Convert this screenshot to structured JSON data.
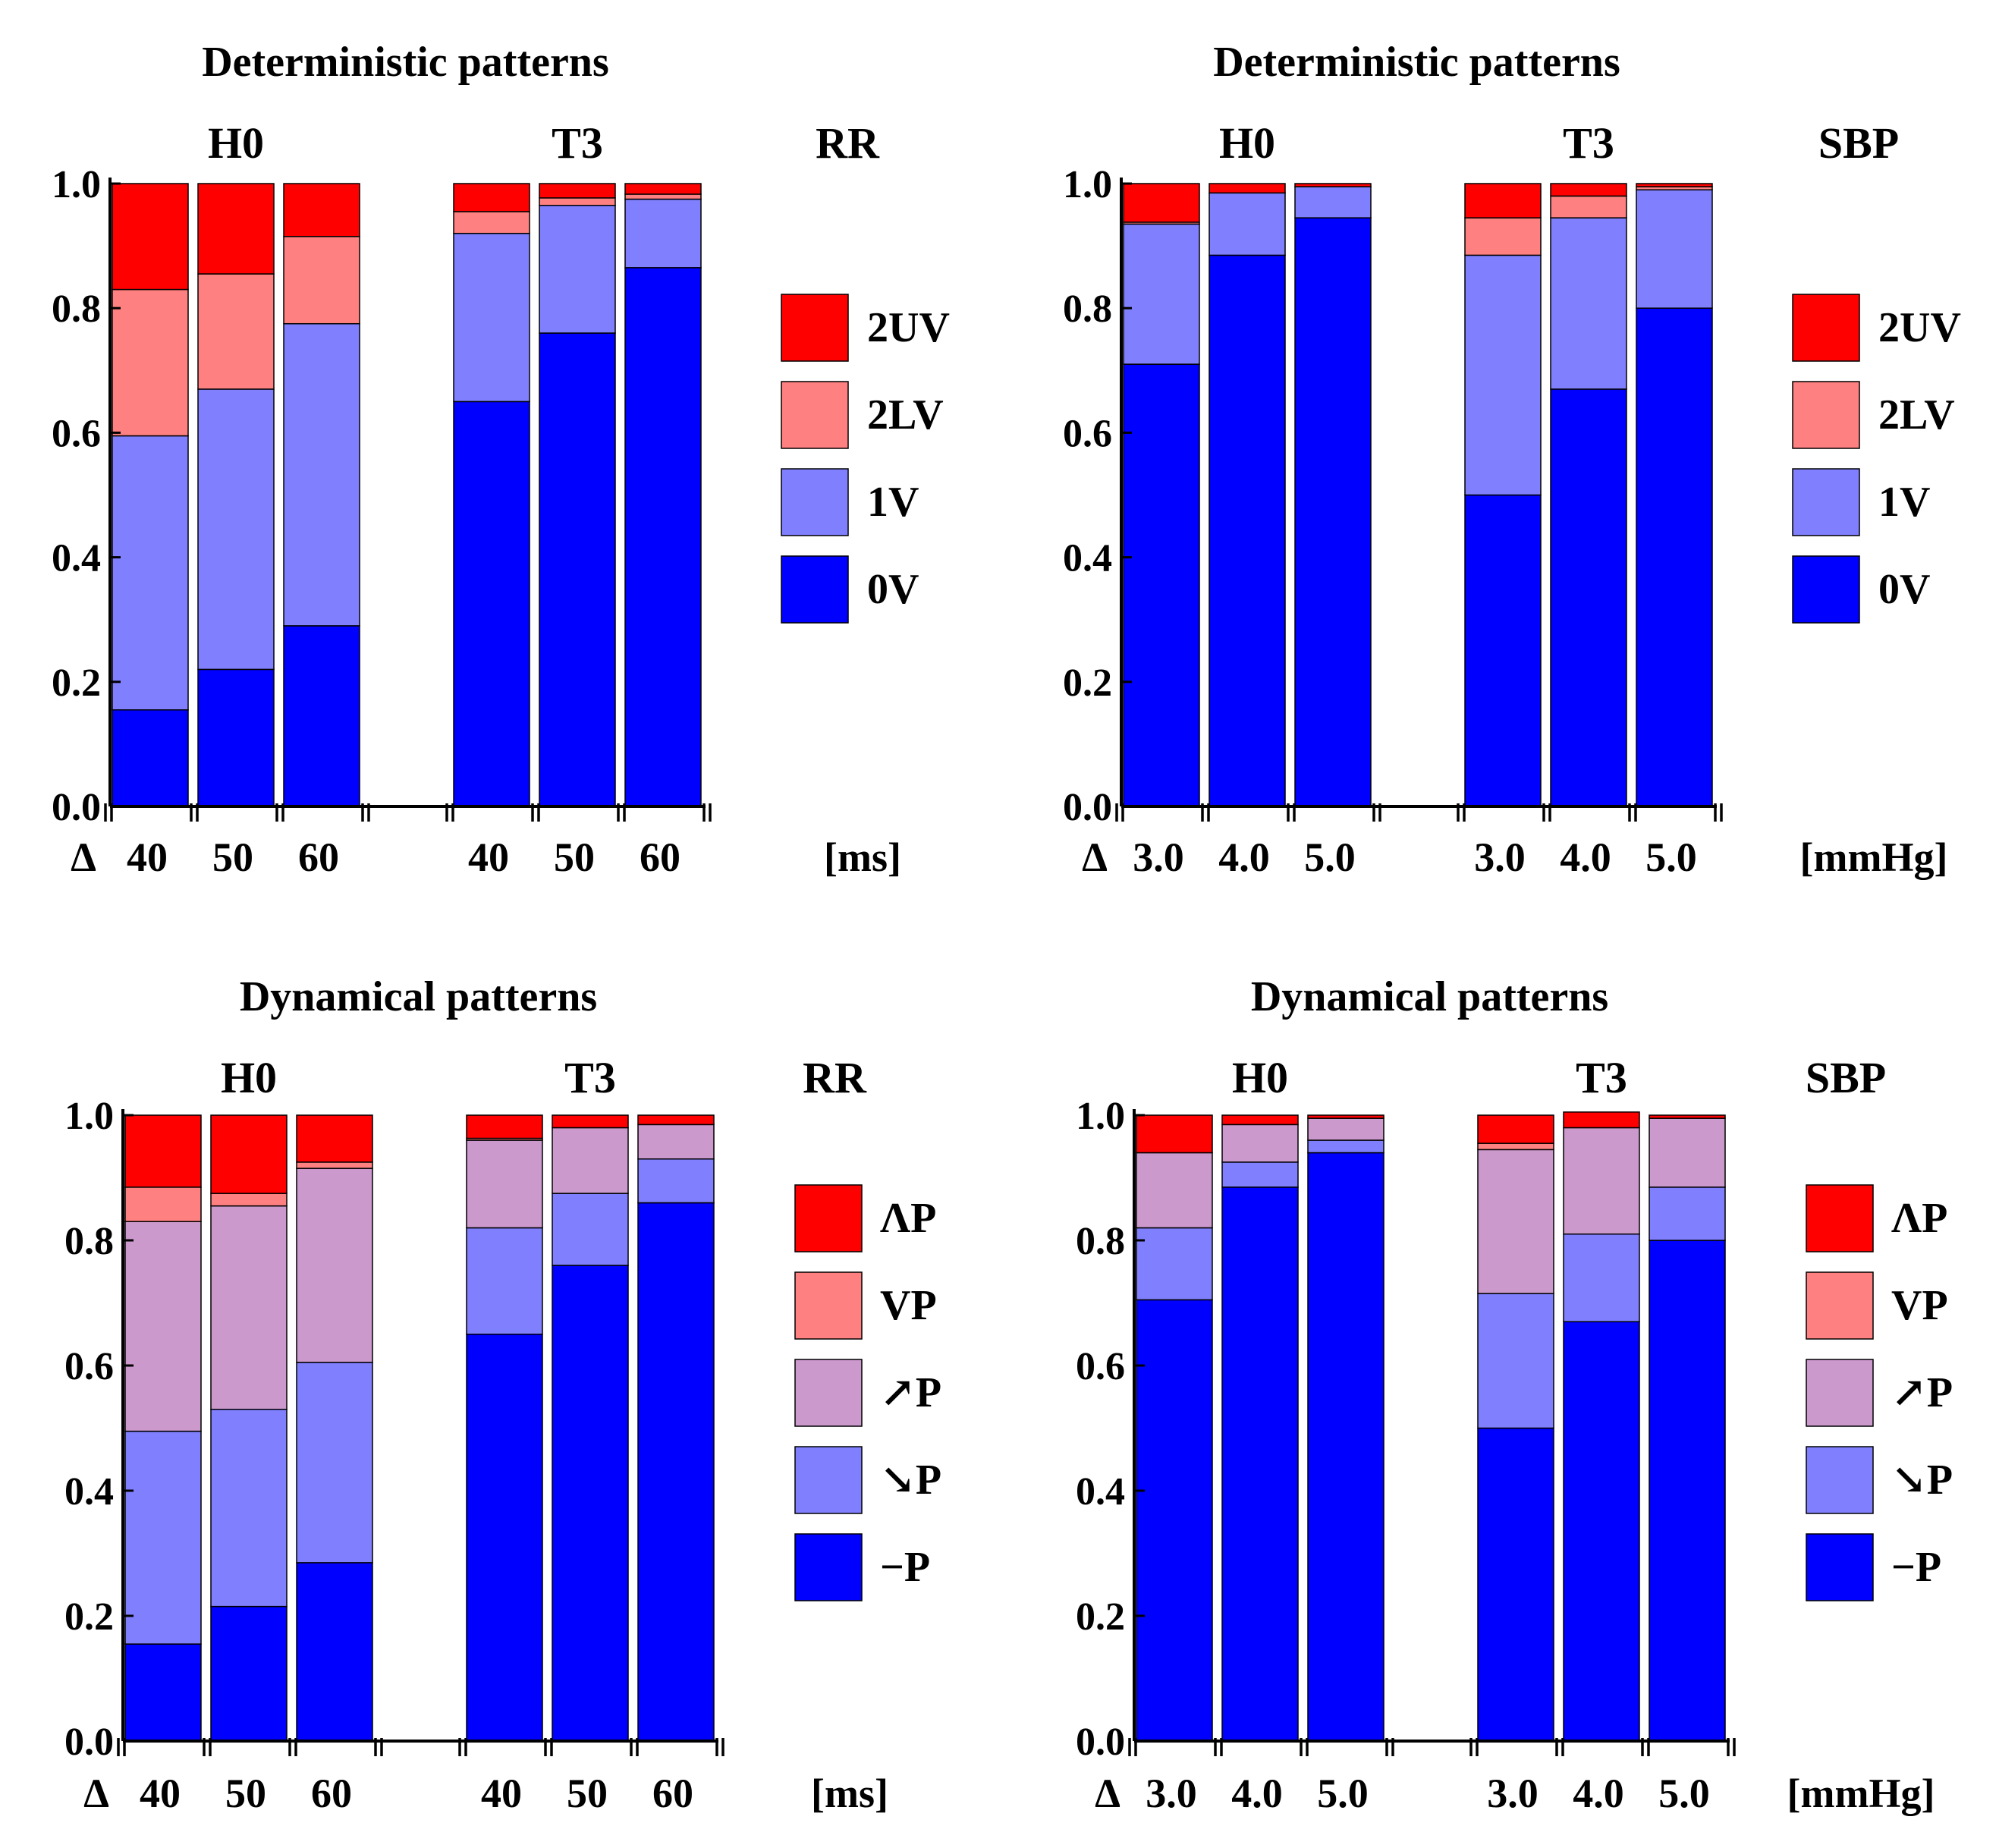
{
  "colors": {
    "0V": "#0000ff",
    "1V": "#8080ff",
    "2LV": "#ff8080",
    "2UV": "#ff0000",
    "-P": "#0000ff",
    "dec": "#8080ff",
    "inc": "#cc99cc",
    "VP": "#ff8080",
    "LP": "#ff0000"
  },
  "chart_data": [
    {
      "id": "det-rr",
      "type": "bar",
      "stacked": true,
      "title": "Deterministic patterns",
      "variable": "RR",
      "unit": "[ms]",
      "delta_symbol": "Δ",
      "groups": [
        "H0",
        "T3"
      ],
      "categories": [
        "40",
        "50",
        "60"
      ],
      "ylim": [
        0,
        1
      ],
      "yticks": [
        "0.0",
        "0.2",
        "0.4",
        "0.6",
        "0.8",
        "1.0"
      ],
      "series": [
        {
          "name": "0V",
          "color": "#0000ff",
          "values": [
            [
              0.155,
              0.22,
              0.29
            ],
            [
              0.65,
              0.76,
              0.865
            ]
          ]
        },
        {
          "name": "1V",
          "color": "#8080ff",
          "values": [
            [
              0.44,
              0.45,
              0.485
            ],
            [
              0.27,
              0.205,
              0.11
            ]
          ]
        },
        {
          "name": "2LV",
          "color": "#ff8080",
          "values": [
            [
              0.235,
              0.185,
              0.14
            ],
            [
              0.035,
              0.012,
              0.008
            ]
          ]
        },
        {
          "name": "2UV",
          "color": "#ff0000",
          "values": [
            [
              0.17,
              0.145,
              0.085
            ],
            [
              0.045,
              0.023,
              0.017
            ]
          ]
        }
      ],
      "legend": [
        "2UV",
        "2LV",
        "1V",
        "0V"
      ]
    },
    {
      "id": "det-sbp",
      "type": "bar",
      "stacked": true,
      "title": "Deterministic patterns",
      "variable": "SBP",
      "unit": "[mmHg]",
      "delta_symbol": "Δ",
      "groups": [
        "H0",
        "T3"
      ],
      "categories": [
        "3.0",
        "4.0",
        "5.0"
      ],
      "ylim": [
        0,
        1
      ],
      "yticks": [
        "0.0",
        "0.2",
        "0.4",
        "0.6",
        "0.8",
        "1.0"
      ],
      "series": [
        {
          "name": "0V",
          "color": "#0000ff",
          "values": [
            [
              0.71,
              0.885,
              0.945
            ],
            [
              0.5,
              0.67,
              0.8
            ]
          ]
        },
        {
          "name": "1V",
          "color": "#8080ff",
          "values": [
            [
              0.225,
              0.1,
              0.05
            ],
            [
              0.385,
              0.275,
              0.19
            ]
          ]
        },
        {
          "name": "2LV",
          "color": "#ff8080",
          "values": [
            [
              0.003,
              0.0,
              0.0
            ],
            [
              0.06,
              0.035,
              0.005
            ]
          ]
        },
        {
          "name": "2UV",
          "color": "#ff0000",
          "values": [
            [
              0.062,
              0.015,
              0.005
            ],
            [
              0.055,
              0.02,
              0.005
            ]
          ]
        }
      ],
      "legend": [
        "2UV",
        "2LV",
        "1V",
        "0V"
      ]
    },
    {
      "id": "dyn-rr",
      "type": "bar",
      "stacked": true,
      "title": "Dynamical patterns",
      "variable": "RR",
      "unit": "[ms]",
      "delta_symbol": "Δ",
      "groups": [
        "H0",
        "T3"
      ],
      "categories": [
        "40",
        "50",
        "60"
      ],
      "ylim": [
        0,
        1
      ],
      "yticks": [
        "0.0",
        "0.2",
        "0.4",
        "0.6",
        "0.8",
        "1.0"
      ],
      "series": [
        {
          "name": "−P",
          "color": "#0000ff",
          "values": [
            [
              0.155,
              0.215,
              0.285
            ],
            [
              0.65,
              0.76,
              0.86
            ]
          ]
        },
        {
          "name": "↘P",
          "color": "#8080ff",
          "values": [
            [
              0.34,
              0.315,
              0.32
            ],
            [
              0.17,
              0.115,
              0.07
            ]
          ]
        },
        {
          "name": "↗P",
          "color": "#cc99cc",
          "values": [
            [
              0.335,
              0.325,
              0.31
            ],
            [
              0.14,
              0.105,
              0.055
            ]
          ]
        },
        {
          "name": "VP",
          "color": "#ff8080",
          "values": [
            [
              0.055,
              0.02,
              0.01
            ],
            [
              0.003,
              0.0,
              0.0
            ]
          ]
        },
        {
          "name": "ΛP",
          "color": "#ff0000",
          "values": [
            [
              0.115,
              0.125,
              0.075
            ],
            [
              0.037,
              0.02,
              0.015
            ]
          ]
        }
      ],
      "legend": [
        "ΛP",
        "VP",
        "↗P",
        "↘P",
        "−P"
      ]
    },
    {
      "id": "dyn-sbp",
      "type": "bar",
      "stacked": true,
      "title": "Dynamical patterns",
      "variable": "SBP",
      "unit": "[mmHg]",
      "delta_symbol": "Δ",
      "groups": [
        "H0",
        "T3"
      ],
      "categories": [
        "3.0",
        "4.0",
        "5.0"
      ],
      "ylim": [
        0,
        1
      ],
      "yticks": [
        "0.0",
        "0.2",
        "0.4",
        "0.6",
        "0.8",
        "1.0"
      ],
      "series": [
        {
          "name": "−P",
          "color": "#0000ff",
          "values": [
            [
              0.705,
              0.885,
              0.94
            ],
            [
              0.5,
              0.67,
              0.8
            ]
          ]
        },
        {
          "name": "↘P",
          "color": "#8080ff",
          "values": [
            [
              0.115,
              0.04,
              0.02
            ],
            [
              0.215,
              0.14,
              0.085
            ]
          ]
        },
        {
          "name": "↗P",
          "color": "#cc99cc",
          "values": [
            [
              0.12,
              0.06,
              0.035
            ],
            [
              0.23,
              0.17,
              0.11
            ]
          ]
        },
        {
          "name": "VP",
          "color": "#ff8080",
          "values": [
            [
              0.0,
              0.0,
              0.0
            ],
            [
              0.01,
              0.0,
              0.0
            ]
          ]
        },
        {
          "name": "ΛP",
          "color": "#ff0000",
          "values": [
            [
              0.06,
              0.015,
              0.005
            ],
            [
              0.045,
              0.025,
              0.005
            ]
          ]
        }
      ],
      "legend": [
        "ΛP",
        "VP",
        "↗P",
        "↘P",
        "−P"
      ]
    }
  ]
}
